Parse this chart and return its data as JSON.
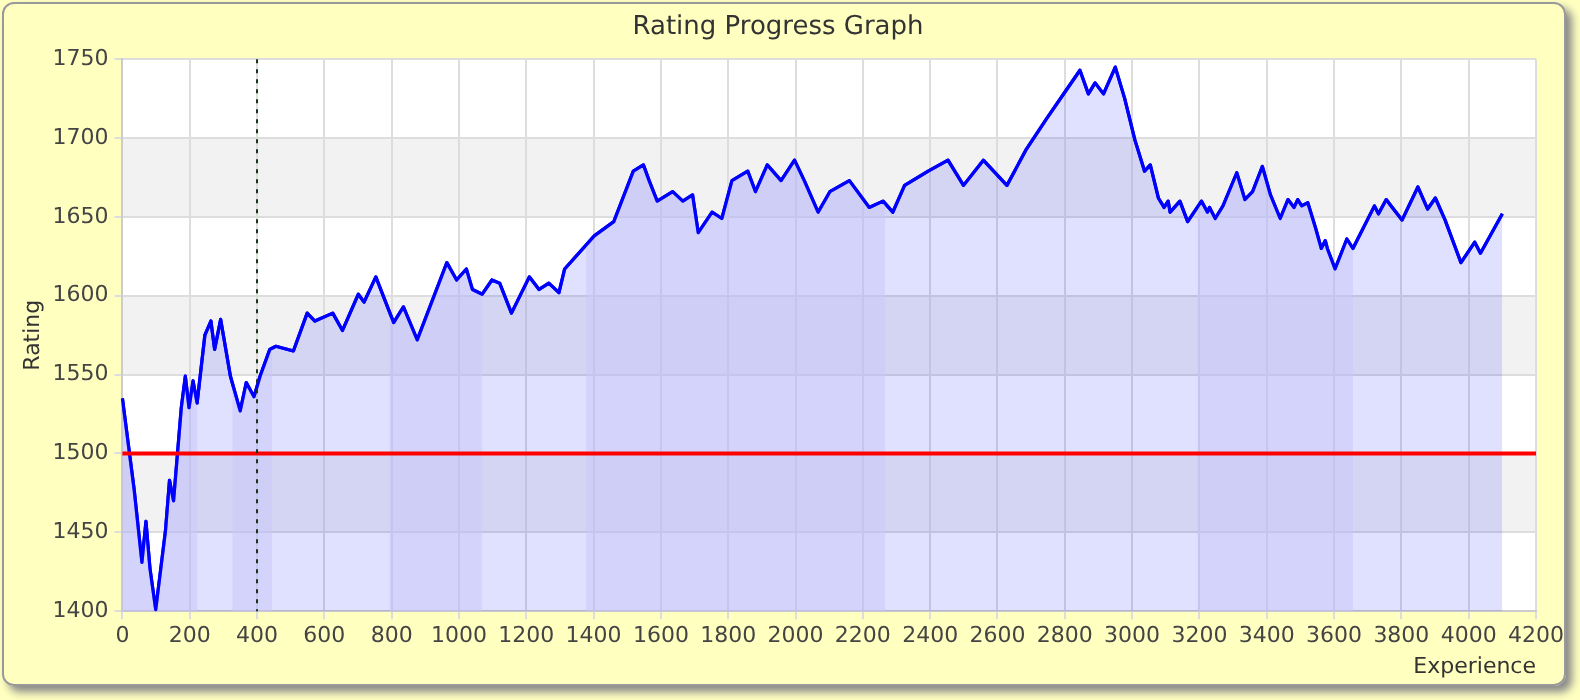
{
  "chart_data": {
    "type": "area",
    "title": "Rating Progress Graph",
    "xlabel": "Experience",
    "ylabel": "Rating",
    "x": [
      0,
      35,
      58,
      70,
      82,
      99,
      128,
      140,
      152,
      175,
      187,
      198,
      210,
      222,
      245,
      263,
      274,
      292,
      321,
      350,
      368,
      391,
      409,
      438,
      456,
      508,
      549,
      572,
      625,
      654,
      701,
      718,
      753,
      806,
      835,
      876,
      964,
      993,
      1022,
      1040,
      1069,
      1098,
      1121,
      1156,
      1209,
      1238,
      1267,
      1297,
      1314,
      1402,
      1460,
      1518,
      1548,
      1565,
      1589,
      1635,
      1665,
      1694,
      1711,
      1752,
      1781,
      1811,
      1858,
      1881,
      1916,
      1957,
      1997,
      2026,
      2067,
      2102,
      2160,
      2219,
      2260,
      2289,
      2324,
      2394,
      2453,
      2499,
      2558,
      2628,
      2686,
      2745,
      2803,
      2845,
      2870,
      2890,
      2915,
      2950,
      2978,
      3008,
      3037,
      3054,
      3078,
      3095,
      3107,
      3113,
      3142,
      3165,
      3206,
      3224,
      3230,
      3247,
      3270,
      3311,
      3335,
      3358,
      3387,
      3411,
      3440,
      3463,
      3481,
      3492,
      3504,
      3522,
      3545,
      3562,
      3574,
      3580,
      3603,
      3638,
      3656,
      3720,
      3732,
      3755,
      3773,
      3802,
      3849,
      3878,
      3901,
      3930,
      3977,
      4018,
      4035,
      4100
    ],
    "series": [
      {
        "color": "#0000ff",
        "values": [
          1535,
          1477,
          1431,
          1457,
          1427,
          1401,
          1451,
          1483,
          1470,
          1529,
          1549,
          1529,
          1546,
          1532,
          1575,
          1584,
          1566,
          1585,
          1549,
          1527,
          1545,
          1536,
          1549,
          1566,
          1568,
          1565,
          1589,
          1584,
          1589,
          1578,
          1601,
          1596,
          1612,
          1583,
          1593,
          1572,
          1621,
          1610,
          1617,
          1604,
          1601,
          1610,
          1608,
          1589,
          1612,
          1604,
          1608,
          1602,
          1617,
          1638,
          1647,
          1679,
          1683,
          1673,
          1660,
          1666,
          1660,
          1664,
          1640,
          1653,
          1649,
          1673,
          1679,
          1666,
          1683,
          1673,
          1686,
          1673,
          1653,
          1666,
          1673,
          1656,
          1660,
          1653,
          1670,
          1679,
          1686,
          1670,
          1686,
          1670,
          1693,
          1712,
          1730,
          1743,
          1728,
          1735,
          1728,
          1745,
          1725,
          1699,
          1679,
          1683,
          1662,
          1656,
          1660,
          1653,
          1660,
          1647,
          1660,
          1653,
          1656,
          1649,
          1657,
          1678,
          1661,
          1666,
          1682,
          1664,
          1649,
          1661,
          1656,
          1661,
          1657,
          1659,
          1643,
          1630,
          1635,
          1630,
          1617,
          1636,
          1630,
          1657,
          1652,
          1661,
          1656,
          1648,
          1669,
          1655,
          1662,
          1648,
          1621,
          1634,
          1627,
          1652
        ]
      }
    ],
    "xlim": [
      0,
      4200
    ],
    "xticks": [
      0,
      200,
      400,
      600,
      800,
      1000,
      1200,
      1400,
      1600,
      1800,
      2000,
      2200,
      2400,
      2600,
      2800,
      3000,
      3200,
      3400,
      3600,
      3800,
      4000,
      4200
    ],
    "ylim": [
      1400,
      1750
    ],
    "yticks": [
      1400,
      1450,
      1500,
      1550,
      1600,
      1650,
      1700,
      1750
    ],
    "ref_lines": [
      {
        "axis": "y",
        "value": 1500,
        "color": "#ff0000",
        "line_style": "solid"
      },
      {
        "axis": "x",
        "value": 400,
        "color": "#1a331a",
        "line_style": "dotted"
      }
    ],
    "bands": [
      {
        "axis": "x",
        "from": 0,
        "to": 222,
        "color": "#c8c8f8"
      },
      {
        "axis": "x",
        "from": 327,
        "to": 444,
        "color": "#c8c8f8"
      },
      {
        "axis": "x",
        "from": 794,
        "to": 1069,
        "color": "#c8c8f8"
      },
      {
        "axis": "x",
        "from": 1378,
        "to": 2266,
        "color": "#c8c8f8"
      },
      {
        "axis": "x",
        "from": 3195,
        "to": 3656,
        "color": "#c8c8f8"
      }
    ],
    "grid": true,
    "legend": false,
    "marker": "none",
    "line_style": "solid"
  }
}
